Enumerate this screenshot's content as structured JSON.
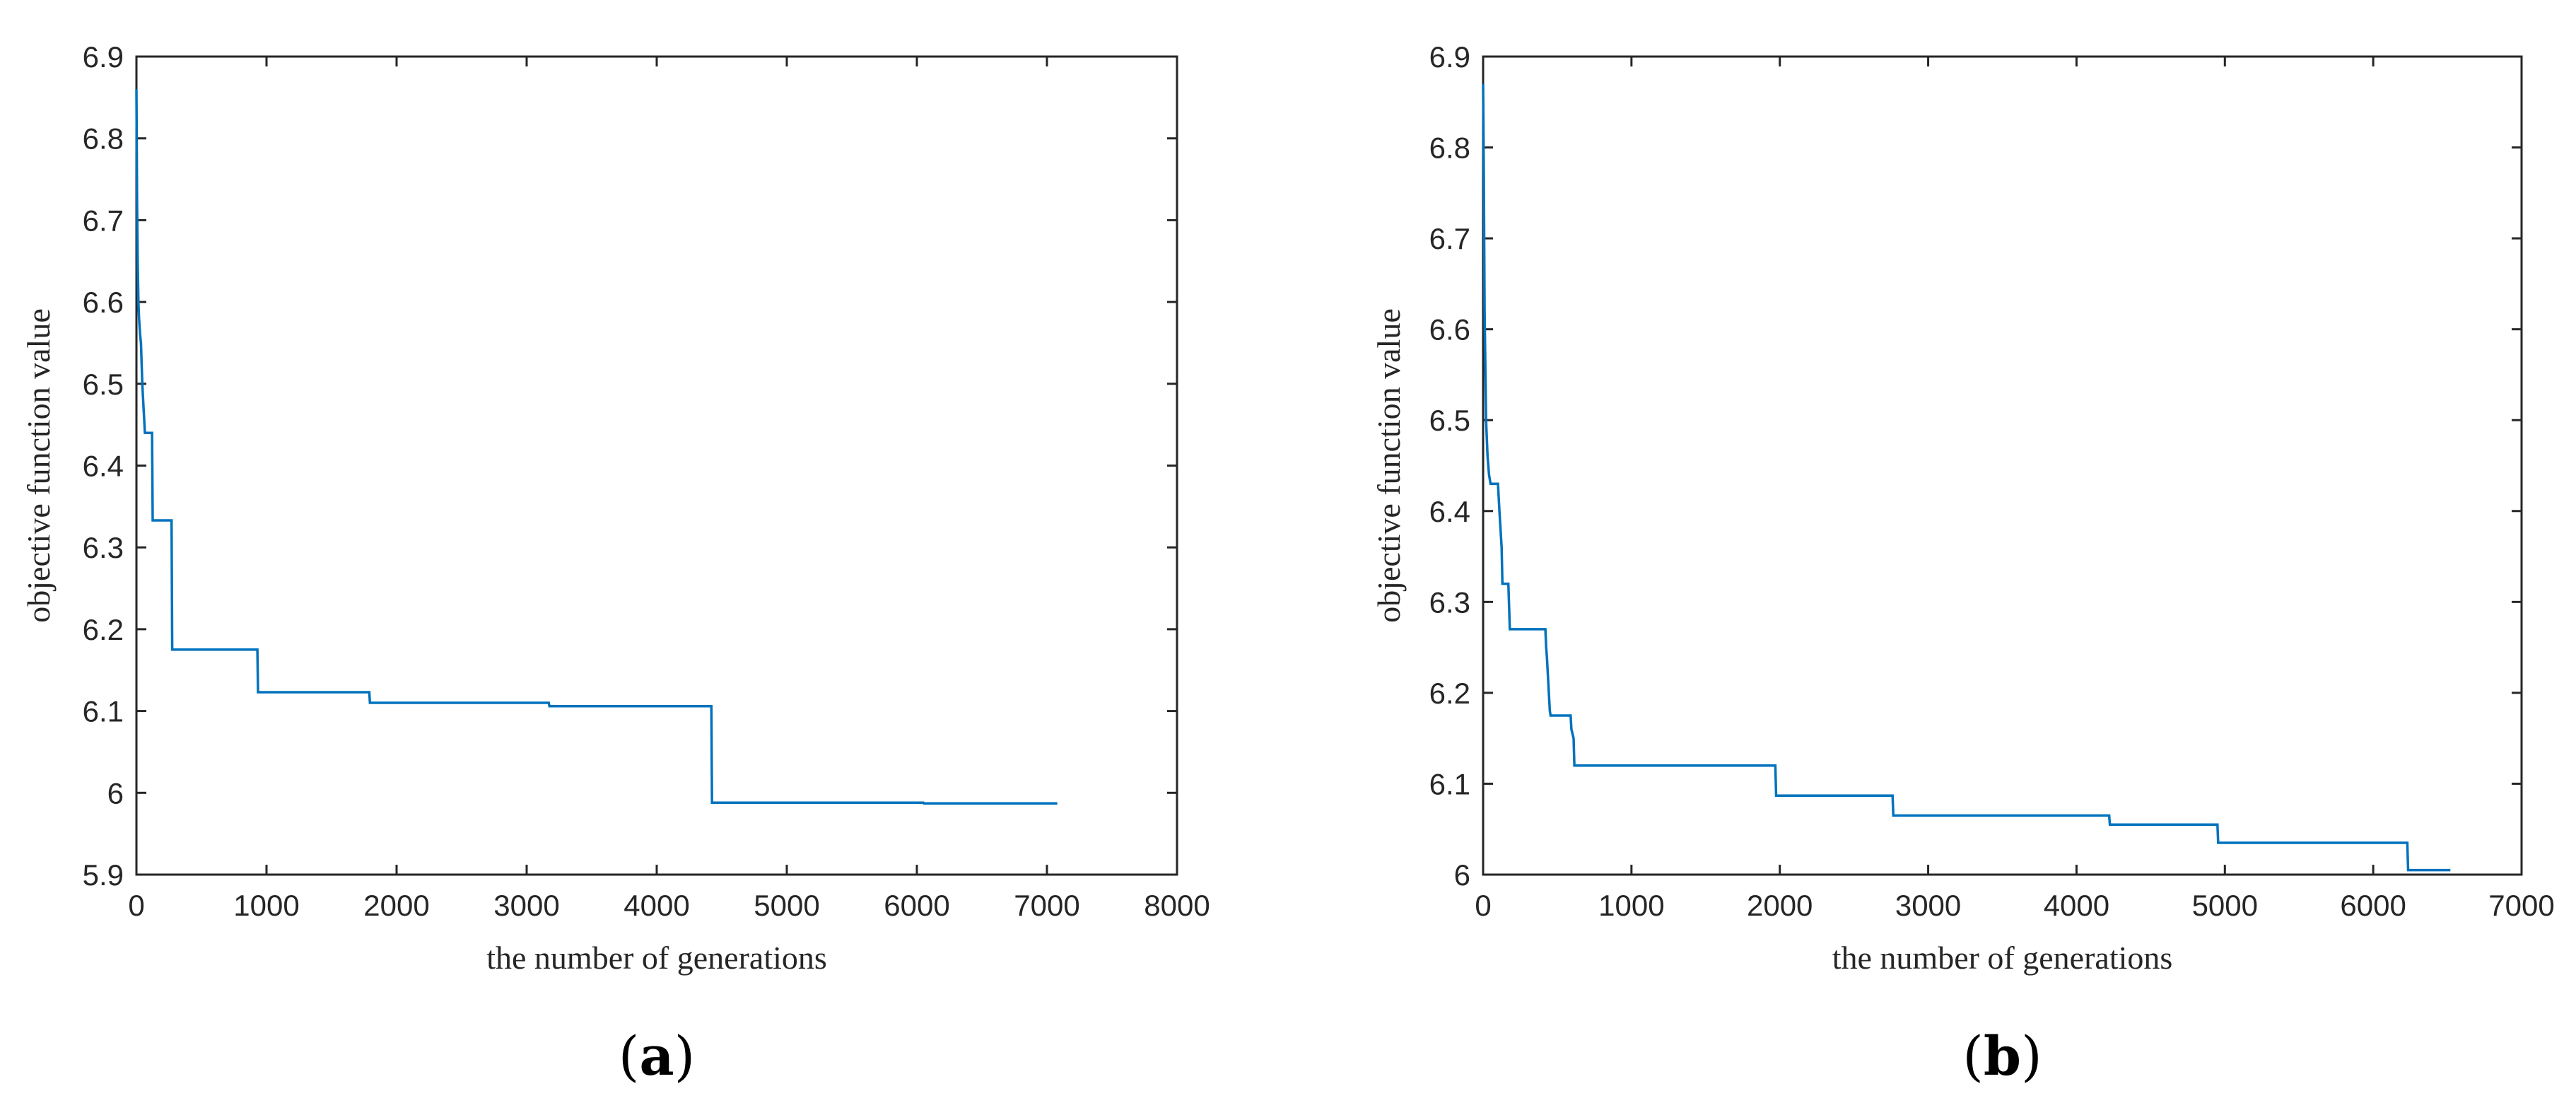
{
  "figure": {
    "panels": [
      {
        "label": "(a)",
        "label_letter": "a"
      },
      {
        "label": "(b)",
        "label_letter": "b"
      }
    ]
  },
  "chart_data": [
    {
      "type": "line",
      "panel": "(a)",
      "xlabel": "the number of generations",
      "ylabel": "objective function value",
      "xlim": [
        0,
        8000
      ],
      "ylim": [
        5.9,
        6.9
      ],
      "xticks": [
        0,
        1000,
        2000,
        3000,
        4000,
        5000,
        6000,
        7000,
        8000
      ],
      "xtick_labels": [
        "0",
        "1000",
        "2000",
        "3000",
        "4000",
        "5000",
        "6000",
        "7000",
        "8000"
      ],
      "yticks": [
        5.9,
        6.0,
        6.1,
        6.2,
        6.3,
        6.4,
        6.5,
        6.6,
        6.7,
        6.8,
        6.9
      ],
      "ytick_labels": [
        "5.9",
        "6",
        "6.1",
        "6.2",
        "6.3",
        "6.4",
        "6.5",
        "6.6",
        "6.7",
        "6.8",
        "6.9"
      ],
      "grid": false,
      "color": "#0072BD",
      "series": [
        {
          "x": [
            0,
            5,
            10,
            15,
            20,
            28,
            35,
            45,
            55,
            65,
            70,
            120,
            125,
            270,
            275,
            930,
            935,
            1790,
            1795,
            3170,
            3175,
            4420,
            4425,
            6050,
            6055,
            7080
          ],
          "y": [
            6.86,
            6.72,
            6.65,
            6.6,
            6.58,
            6.56,
            6.55,
            6.5,
            6.47,
            6.44,
            6.44,
            6.44,
            6.333,
            6.333,
            6.175,
            6.175,
            6.123,
            6.123,
            6.11,
            6.11,
            6.106,
            6.106,
            5.988,
            5.988,
            5.987,
            5.987
          ]
        }
      ]
    },
    {
      "type": "line",
      "panel": "(b)",
      "xlabel": "the number of generations",
      "ylabel": "objective function value",
      "xlim": [
        0,
        7000
      ],
      "ylim": [
        6.0,
        6.9
      ],
      "xticks": [
        0,
        1000,
        2000,
        3000,
        4000,
        5000,
        6000,
        7000
      ],
      "xtick_labels": [
        "0",
        "1000",
        "2000",
        "3000",
        "4000",
        "5000",
        "6000",
        "7000"
      ],
      "yticks": [
        6.0,
        6.1,
        6.2,
        6.3,
        6.4,
        6.5,
        6.6,
        6.7,
        6.8,
        6.9
      ],
      "ytick_labels": [
        "6",
        "6.1",
        "6.2",
        "6.3",
        "6.4",
        "6.5",
        "6.6",
        "6.7",
        "6.8",
        "6.9"
      ],
      "grid": false,
      "color": "#0072BD",
      "series": [
        {
          "x": [
            0,
            5,
            10,
            20,
            30,
            40,
            50,
            60,
            80,
            90,
            100,
            110,
            125,
            130,
            170,
            180,
            420,
            425,
            430,
            450,
            455,
            590,
            595,
            610,
            615,
            1970,
            1975,
            2760,
            2765,
            4220,
            4225,
            4950,
            4955,
            6230,
            6235,
            6520
          ],
          "y": [
            6.87,
            6.77,
            6.62,
            6.5,
            6.46,
            6.44,
            6.43,
            6.43,
            6.43,
            6.43,
            6.43,
            6.4,
            6.36,
            6.32,
            6.32,
            6.27,
            6.27,
            6.25,
            6.24,
            6.18,
            6.175,
            6.175,
            6.16,
            6.15,
            6.12,
            6.12,
            6.087,
            6.087,
            6.065,
            6.065,
            6.055,
            6.055,
            6.035,
            6.035,
            6.005,
            6.005
          ]
        }
      ]
    }
  ]
}
